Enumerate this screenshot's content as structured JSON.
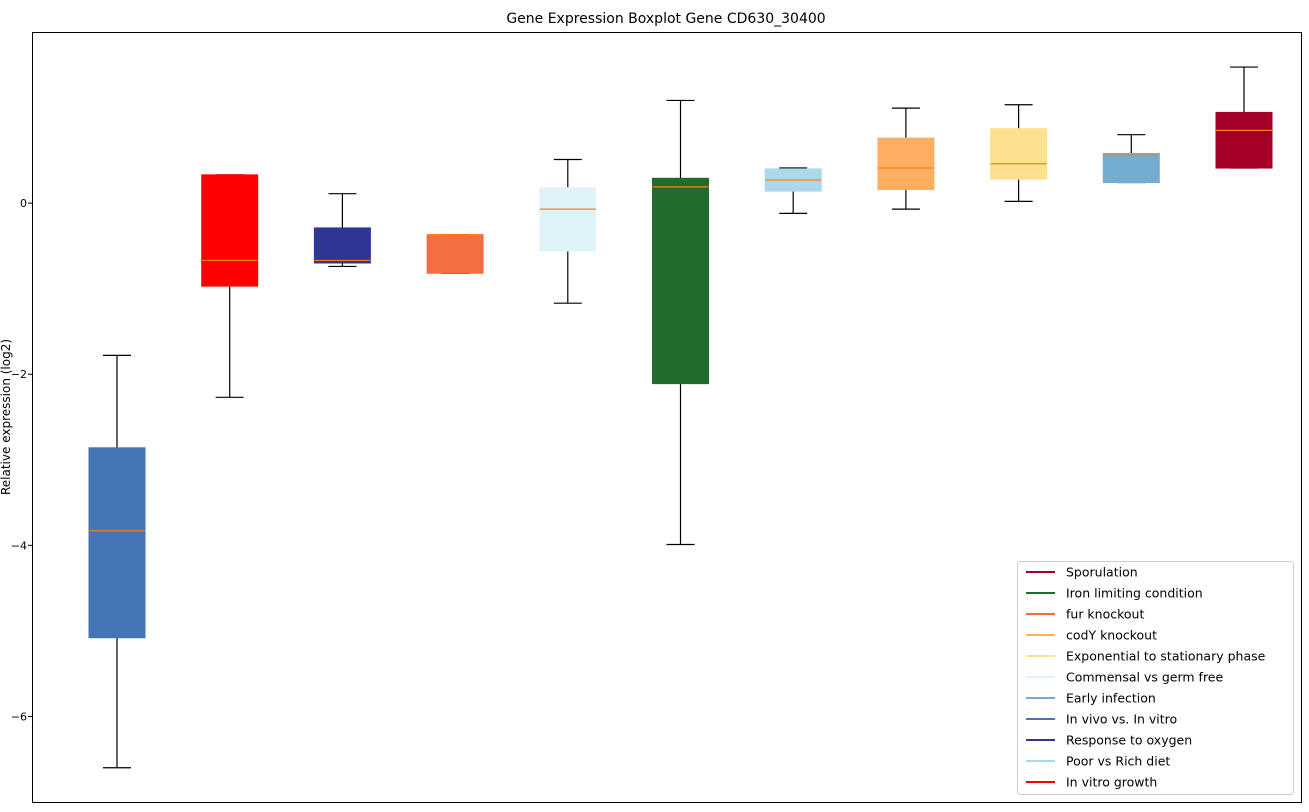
{
  "chart_data": {
    "type": "boxplot",
    "title": "Gene Expression Boxplot Gene CD630_30400",
    "xlabel": "",
    "ylabel": "Relative expression (log2)",
    "ylim": [
      -7.0,
      2.0
    ],
    "yticks": [
      0,
      -2,
      -4,
      -6
    ],
    "ytick_labels": [
      "0",
      "−2",
      "−4",
      "−6"
    ],
    "grid": false,
    "legend_position": "lower-right",
    "median_color": "#ff7f0e",
    "boxes": [
      {
        "name": "In vivo vs. In vitro",
        "color": "#4575b4",
        "whislo": -6.6,
        "q1": -5.08,
        "med": -3.83,
        "q3": -2.86,
        "whishi": -1.78
      },
      {
        "name": "In vitro growth",
        "color": "#ff0000",
        "whislo": -2.27,
        "q1": -0.97,
        "med": -0.67,
        "q3": 0.33,
        "whishi": 0.33
      },
      {
        "name": "Response to oxygen",
        "color": "#313695",
        "whislo": -0.74,
        "q1": -0.7,
        "med": -0.67,
        "q3": -0.29,
        "whishi": 0.11
      },
      {
        "name": "fur knockout",
        "color": "#f46d43",
        "whislo": -0.82,
        "q1": -0.82,
        "med": -0.37,
        "q3": -0.37,
        "whishi": -0.37
      },
      {
        "name": "Commensal vs germ free",
        "color": "#e0f3f8",
        "whislo": -1.17,
        "q1": -0.56,
        "med": -0.07,
        "q3": 0.18,
        "whishi": 0.51
      },
      {
        "name": "Iron limiting condition",
        "color": "#226b2d",
        "whislo": -3.99,
        "q1": -2.11,
        "med": 0.19,
        "q3": 0.29,
        "whishi": 1.2
      },
      {
        "name": "Poor vs Rich diet",
        "color": "#abd9e9",
        "whislo": -0.12,
        "q1": 0.14,
        "med": 0.27,
        "q3": 0.4,
        "whishi": 0.41
      },
      {
        "name": "codY knockout",
        "color": "#fdae61",
        "whislo": -0.07,
        "q1": 0.16,
        "med": 0.41,
        "q3": 0.76,
        "whishi": 1.11
      },
      {
        "name": "Exponential to stationary phase",
        "color": "#fee090",
        "whislo": 0.02,
        "q1": 0.28,
        "med": 0.46,
        "q3": 0.87,
        "whishi": 1.15
      },
      {
        "name": "Early infection",
        "color": "#74add1",
        "whislo": 0.24,
        "q1": 0.24,
        "med": 0.56,
        "q3": 0.58,
        "whishi": 0.8
      },
      {
        "name": "Sporulation",
        "color": "#a50026",
        "whislo": 0.41,
        "q1": 0.41,
        "med": 0.85,
        "q3": 1.06,
        "whishi": 1.59
      }
    ],
    "legend": [
      {
        "label": "Sporulation",
        "color": "#a50026"
      },
      {
        "label": "Iron limiting condition",
        "color": "#226b2d"
      },
      {
        "label": "fur knockout",
        "color": "#f46d43"
      },
      {
        "label": "codY knockout",
        "color": "#fdae61"
      },
      {
        "label": "Exponential to stationary phase",
        "color": "#fee090"
      },
      {
        "label": "Commensal vs germ free",
        "color": "#e0f3f8"
      },
      {
        "label": "Early infection",
        "color": "#74add1"
      },
      {
        "label": "In vivo vs. In vitro",
        "color": "#4575b4"
      },
      {
        "label": "Response to oxygen",
        "color": "#313695"
      },
      {
        "label": "Poor vs Rich diet",
        "color": "#abd9e9"
      },
      {
        "label": "In vitro growth",
        "color": "#ff0000"
      }
    ]
  }
}
